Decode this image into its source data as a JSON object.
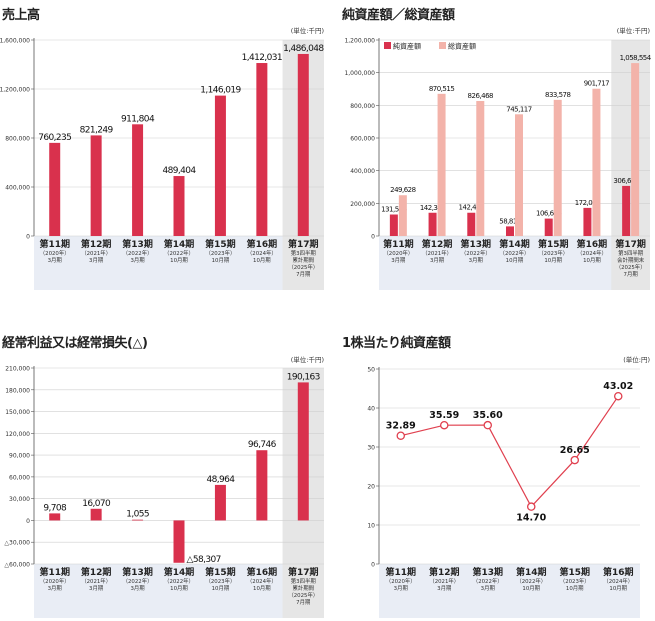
{
  "colors": {
    "net_assets": "#d9314d",
    "total_assets": "#f3b3aa",
    "line": "#e0404f",
    "category_band": "#e9edf5",
    "highlight_band": "#e6e6e6",
    "grid": "#cfcfcf"
  },
  "chart_data": [
    {
      "type": "bar",
      "title": "売上高",
      "unit": "(単位:千円)",
      "categories": [
        {
          "name": "第11期",
          "sub": [
            "（2020年）",
            "3月期"
          ]
        },
        {
          "name": "第12期",
          "sub": [
            "（2021年）",
            "3月期"
          ]
        },
        {
          "name": "第13期",
          "sub": [
            "（2022年）",
            "3月期"
          ]
        },
        {
          "name": "第14期",
          "sub": [
            "（2022年）",
            "10月期"
          ]
        },
        {
          "name": "第15期",
          "sub": [
            "（2023年）",
            "10月期"
          ]
        },
        {
          "name": "第16期",
          "sub": [
            "（2024年）",
            "10月期"
          ]
        },
        {
          "name": "第17期",
          "sub": [
            "第3四半期",
            "累計期間",
            "（2025年）",
            "7月期"
          ]
        }
      ],
      "values": [
        760235,
        821249,
        911804,
        489404,
        1146019,
        1412031,
        1486048
      ],
      "value_labels": [
        "760,235",
        "821,249",
        "911,804",
        "489,404",
        "1,146,019",
        "1,412,031",
        "1,486,048"
      ],
      "ylim": [
        0,
        1600000
      ],
      "yticks": [
        0,
        400000,
        800000,
        1200000,
        1600000
      ],
      "ytick_labels": [
        "0",
        "400,000",
        "800,000",
        "1,200,000",
        "1,600,000"
      ],
      "highlight_index": 6
    },
    {
      "type": "bar",
      "title": "純資産額／総資産額",
      "unit": "(単位:千円)",
      "categories": [
        {
          "name": "第11期",
          "sub": [
            "（2020年）",
            "3月期"
          ]
        },
        {
          "name": "第12期",
          "sub": [
            "（2021年）",
            "3月期"
          ]
        },
        {
          "name": "第13期",
          "sub": [
            "（2022年）",
            "3月期"
          ]
        },
        {
          "name": "第14期",
          "sub": [
            "（2022年）",
            "10月期"
          ]
        },
        {
          "name": "第15期",
          "sub": [
            "（2023年）",
            "10月期"
          ]
        },
        {
          "name": "第16期",
          "sub": [
            "（2024年）",
            "10月期"
          ]
        },
        {
          "name": "第17期",
          "sub": [
            "第3四半期",
            "会計期間末",
            "（2025年）",
            "7月期"
          ]
        }
      ],
      "series": [
        {
          "name": "純資産額",
          "values": [
            131544,
            142343,
            142402,
            58817,
            106614,
            172097,
            306645
          ],
          "value_labels": [
            "131,544",
            "142,343",
            "142,402",
            "58,817",
            "106,614",
            "172,097",
            "306,645"
          ]
        },
        {
          "name": "総資産額",
          "values": [
            249628,
            870515,
            826468,
            745117,
            833578,
            901717,
            1058554
          ],
          "value_labels": [
            "249,628",
            "870,515",
            "826,468",
            "745,117",
            "833,578",
            "901,717",
            "1,058,554"
          ]
        }
      ],
      "legend": "top-left",
      "ylim": [
        0,
        1200000
      ],
      "yticks": [
        0,
        200000,
        400000,
        600000,
        800000,
        1000000,
        1200000
      ],
      "ytick_labels": [
        "0",
        "200,000",
        "400,000",
        "600,000",
        "800,000",
        "1,000,000",
        "1,200,000"
      ],
      "highlight_index": 6
    },
    {
      "type": "bar",
      "title": "経常利益又は経常損失(△)",
      "unit": "(単位:千円)",
      "categories": [
        {
          "name": "第11期",
          "sub": [
            "（2020年）",
            "3月期"
          ]
        },
        {
          "name": "第12期",
          "sub": [
            "（2021年）",
            "3月期"
          ]
        },
        {
          "name": "第13期",
          "sub": [
            "（2022年）",
            "3月期"
          ]
        },
        {
          "name": "第14期",
          "sub": [
            "（2022年）",
            "10月期"
          ]
        },
        {
          "name": "第15期",
          "sub": [
            "（2023年）",
            "10月期"
          ]
        },
        {
          "name": "第16期",
          "sub": [
            "（2024年）",
            "10月期"
          ]
        },
        {
          "name": "第17期",
          "sub": [
            "第3四半期",
            "累計期間",
            "（2025年）",
            "7月期"
          ]
        }
      ],
      "values": [
        9708,
        16070,
        1055,
        -58307,
        48964,
        96746,
        190163
      ],
      "value_labels": [
        "9,708",
        "16,070",
        "1,055",
        "△58,307",
        "48,964",
        "96,746",
        "190,163"
      ],
      "ylim": [
        -60000,
        210000
      ],
      "yticks": [
        -60000,
        -30000,
        0,
        30000,
        60000,
        90000,
        120000,
        150000,
        180000,
        210000
      ],
      "ytick_labels": [
        "△60,000",
        "△30,000",
        "0",
        "30,000",
        "60,000",
        "90,000",
        "120,000",
        "150,000",
        "180,000",
        "210,000"
      ],
      "highlight_index": 6
    },
    {
      "type": "line",
      "title": "1株当たり純資産額",
      "unit": "(単位:円)",
      "categories": [
        {
          "name": "第11期",
          "sub": [
            "（2020年）",
            "3月期"
          ]
        },
        {
          "name": "第12期",
          "sub": [
            "（2021年）",
            "3月期"
          ]
        },
        {
          "name": "第13期",
          "sub": [
            "（2022年）",
            "3月期"
          ]
        },
        {
          "name": "第14期",
          "sub": [
            "（2022年）",
            "10月期"
          ]
        },
        {
          "name": "第15期",
          "sub": [
            "（2023年）",
            "10月期"
          ]
        },
        {
          "name": "第16期",
          "sub": [
            "（2024年）",
            "10月期"
          ]
        }
      ],
      "values": [
        32.89,
        35.59,
        35.6,
        14.7,
        26.65,
        43.02
      ],
      "value_labels": [
        "32.89",
        "35.59",
        "35.60",
        "14.70",
        "26.65",
        "43.02"
      ],
      "ylim": [
        0,
        50
      ],
      "yticks": [
        0,
        10,
        20,
        30,
        40,
        50
      ],
      "ytick_labels": [
        "0",
        "10",
        "20",
        "30",
        "40",
        "50"
      ]
    }
  ]
}
